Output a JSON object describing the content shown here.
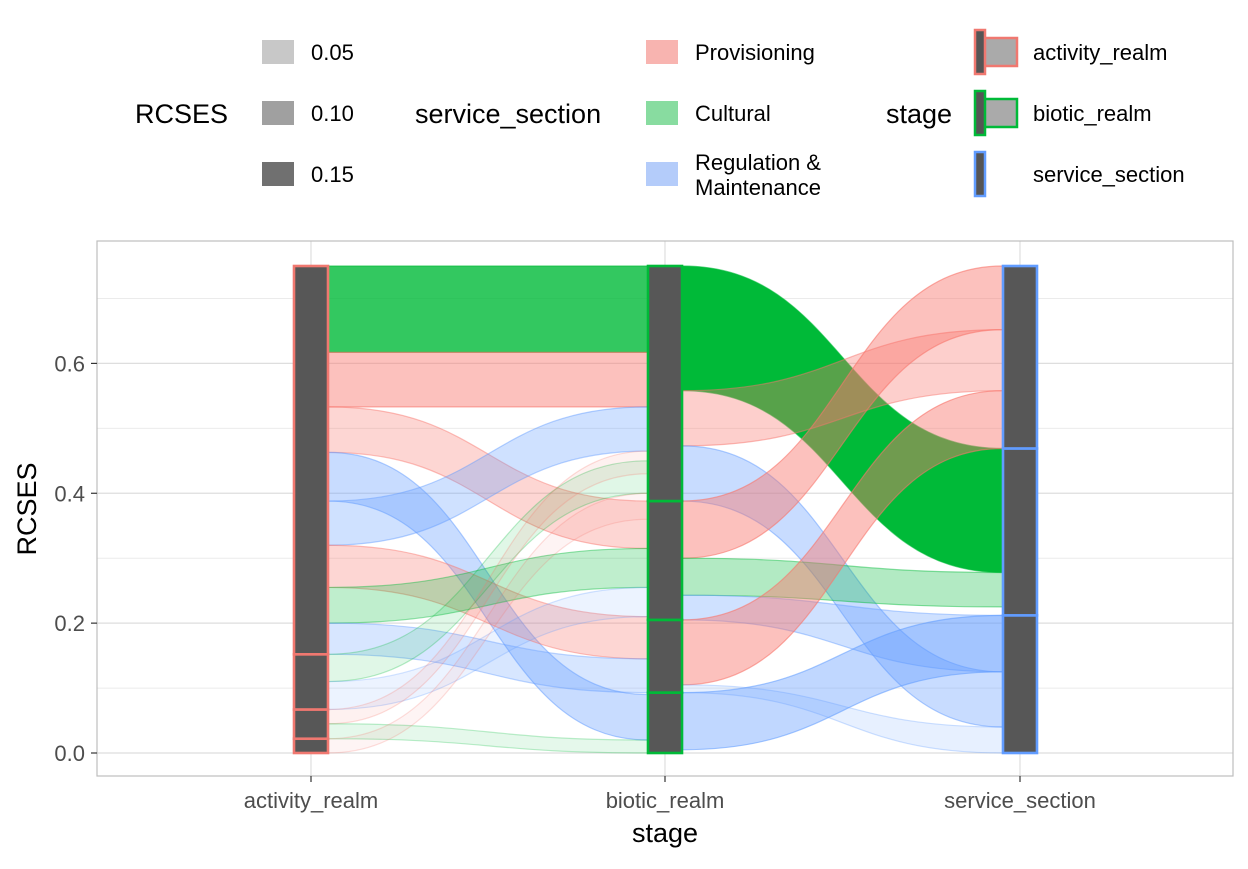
{
  "chart_data": {
    "type": "alluvial",
    "xlabel": "stage",
    "ylabel": "RCSES",
    "ylim": [
      0,
      0.75
    ],
    "yticks": [
      0.0,
      0.2,
      0.4,
      0.6
    ],
    "ytick_labels": [
      "0.0",
      "0.2",
      "0.4",
      "0.6"
    ],
    "stages": [
      "activity_realm",
      "biotic_realm",
      "service_section"
    ],
    "grid": true,
    "legend_position": "top",
    "legends": {
      "size": {
        "title": "RCSES",
        "items": [
          {
            "label": "0.05",
            "color": "#c8c8c8"
          },
          {
            "label": "0.10",
            "color": "#a0a0a0"
          },
          {
            "label": "0.15",
            "color": "#707070"
          }
        ]
      },
      "fill": {
        "title": "service_section",
        "items": [
          {
            "label": "Provisioning",
            "color": "#f8b4b0"
          },
          {
            "label": "Cultural",
            "color": "#88dca0"
          },
          {
            "label": "Regulation &",
            "label2": "Maintenance",
            "color": "#b4ccfa"
          }
        ]
      },
      "stroke": {
        "title": "stage",
        "items": [
          {
            "label": "activity_realm",
            "color": "#f07870"
          },
          {
            "label": "biotic_realm",
            "color": "#00ba38"
          },
          {
            "label": "service_section",
            "color": "#619cff"
          }
        ]
      }
    },
    "stratum_boundaries": {
      "activity_realm": [
        0.0,
        0.022,
        0.067,
        0.152,
        0.75
      ],
      "biotic_realm": [
        0.0,
        0.093,
        0.205,
        0.388,
        0.75
      ],
      "service_section": [
        0.0,
        0.212,
        0.469,
        0.75
      ]
    },
    "flows_stage1_stage2": [
      {
        "y0": [
          0.617,
          0.75
        ],
        "y1": [
          0.617,
          0.75
        ],
        "section": "Cultural",
        "alpha": 0.8
      },
      {
        "y0": [
          0.533,
          0.617
        ],
        "y1": [
          0.533,
          0.617
        ],
        "section": "Provisioning",
        "alpha": 0.45
      },
      {
        "y0": [
          0.463,
          0.533
        ],
        "y1": [
          0.315,
          0.388
        ],
        "section": "Provisioning",
        "alpha": 0.3
      },
      {
        "y0": [
          0.388,
          0.463
        ],
        "y1": [
          0.02,
          0.09
        ],
        "section": "Regulation & Maintenance",
        "alpha": 0.35
      },
      {
        "y0": [
          0.32,
          0.388
        ],
        "y1": [
          0.465,
          0.533
        ],
        "section": "Regulation & Maintenance",
        "alpha": 0.3
      },
      {
        "y0": [
          0.255,
          0.32
        ],
        "y1": [
          0.145,
          0.21
        ],
        "section": "Provisioning",
        "alpha": 0.3
      },
      {
        "y0": [
          0.2,
          0.255
        ],
        "y1": [
          0.255,
          0.315
        ],
        "section": "Cultural",
        "alpha": 0.25
      },
      {
        "y0": [
          0.152,
          0.2
        ],
        "y1": [
          0.093,
          0.145
        ],
        "section": "Regulation & Maintenance",
        "alpha": 0.25
      },
      {
        "y0": [
          0.11,
          0.152
        ],
        "y1": [
          0.4,
          0.45
        ],
        "section": "Cultural",
        "alpha": 0.12
      },
      {
        "y0": [
          0.067,
          0.11
        ],
        "y1": [
          0.21,
          0.255
        ],
        "section": "Regulation & Maintenance",
        "alpha": 0.12
      },
      {
        "y0": [
          0.045,
          0.067
        ],
        "y1": [
          0.43,
          0.465
        ],
        "section": "Provisioning",
        "alpha": 0.1
      },
      {
        "y0": [
          0.022,
          0.045
        ],
        "y1": [
          0.0,
          0.02
        ],
        "section": "Cultural",
        "alpha": 0.1
      },
      {
        "y0": [
          0.0,
          0.022
        ],
        "y1": [
          0.36,
          0.4
        ],
        "section": "Provisioning",
        "alpha": 0.08
      }
    ],
    "flows_stage2_stage3": [
      {
        "y0": [
          0.558,
          0.75
        ],
        "y1": [
          0.278,
          0.469
        ],
        "section": "Cultural",
        "alpha": 1.0
      },
      {
        "y0": [
          0.473,
          0.558
        ],
        "y1": [
          0.558,
          0.652
        ],
        "section": "Provisioning",
        "alpha": 0.35
      },
      {
        "y0": [
          0.388,
          0.473
        ],
        "y1": [
          0.04,
          0.125
        ],
        "section": "Regulation & Maintenance",
        "alpha": 0.35
      },
      {
        "y0": [
          0.3,
          0.388
        ],
        "y1": [
          0.652,
          0.75
        ],
        "section": "Provisioning",
        "alpha": 0.45
      },
      {
        "y0": [
          0.243,
          0.3
        ],
        "y1": [
          0.225,
          0.278
        ],
        "section": "Cultural",
        "alpha": 0.3
      },
      {
        "y0": [
          0.205,
          0.243
        ],
        "y1": [
          0.125,
          0.212
        ],
        "section": "Regulation & Maintenance",
        "alpha": 0.3
      },
      {
        "y0": [
          0.105,
          0.205
        ],
        "y1": [
          0.469,
          0.558
        ],
        "section": "Provisioning",
        "alpha": 0.45
      },
      {
        "y0": [
          0.093,
          0.105
        ],
        "y1": [
          0.0,
          0.04
        ],
        "section": "Regulation & Maintenance",
        "alpha": 0.15
      },
      {
        "y0": [
          0.005,
          0.093
        ],
        "y1": [
          0.125,
          0.212
        ],
        "section": "Regulation & Maintenance",
        "alpha": 0.4
      }
    ]
  }
}
